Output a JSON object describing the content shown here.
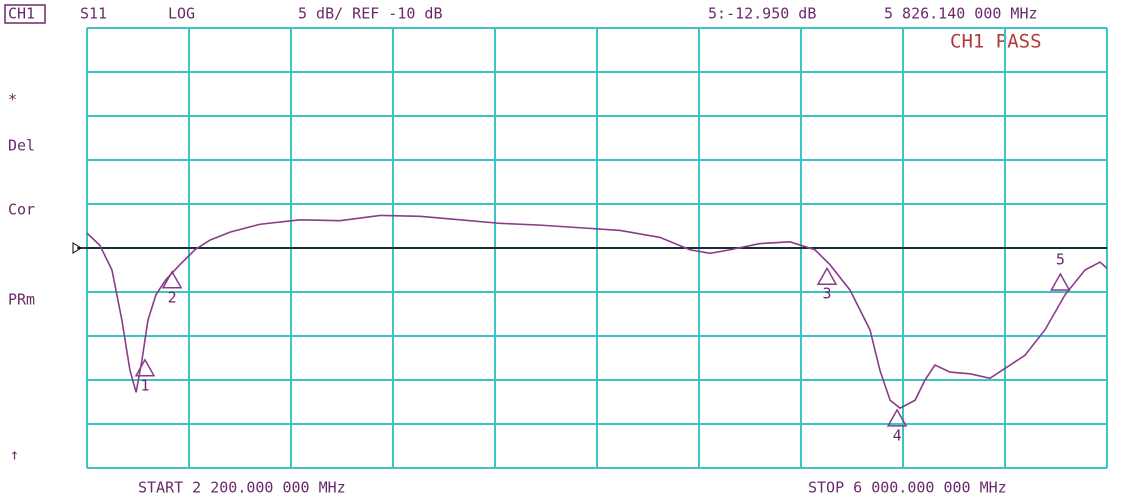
{
  "header": {
    "channel": "CH1",
    "param": "S11",
    "format": "LOG",
    "scale": "5 dB/ REF -10 dB",
    "marker_readout": "5:-12.950 dB",
    "marker_freq": "5 826.140 000 MHz",
    "status": "CH1 PASS"
  },
  "side_labels": [
    "*",
    "Del",
    "Cor",
    "PRm",
    "↑"
  ],
  "chart_data": {
    "type": "line",
    "start_label": "START 2 200.000 000 MHz",
    "stop_label": "STOP 6 000.000 000 MHz",
    "xlim": [
      2200,
      6000
    ],
    "ylim": [
      -35,
      15
    ],
    "ref": -10,
    "xticks": [
      2200,
      2580,
      2960,
      3340,
      3720,
      4100,
      4480,
      4860,
      5240,
      5620,
      6000
    ],
    "yticks": [
      -35,
      -30,
      -25,
      -20,
      -15,
      -10,
      -5,
      0,
      5,
      10,
      15
    ],
    "grid": true,
    "series": [
      {
        "color": "#8a3c8a",
        "x": [
          2200,
          2248,
          2293,
          2330,
          2360,
          2383,
          2405,
          2427,
          2457,
          2494,
          2546,
          2602,
          2658,
          2733,
          2845,
          2994,
          3143,
          3292,
          3441,
          3590,
          3739,
          3888,
          4037,
          4186,
          4335,
          4446,
          4521,
          4596,
          4707,
          4819,
          4912,
          4968,
          5043,
          5117,
          5154,
          5192,
          5229,
          5285,
          5322,
          5359,
          5415,
          5490,
          5564,
          5639,
          5694,
          5769,
          5844,
          5918,
          5974,
          6000
        ],
        "values": [
          -8.3,
          -9.7,
          -12.5,
          -18.2,
          -23.9,
          -26.4,
          -22.7,
          -18.2,
          -15.3,
          -13.6,
          -11.9,
          -10.2,
          -9.1,
          -8.2,
          -7.3,
          -6.8,
          -6.9,
          -6.3,
          -6.4,
          -6.8,
          -7.2,
          -7.4,
          -7.7,
          -8.0,
          -8.8,
          -10.2,
          -10.6,
          -10.2,
          -9.5,
          -9.3,
          -10.2,
          -11.9,
          -14.8,
          -19.3,
          -23.9,
          -27.3,
          -28.2,
          -27.3,
          -25.0,
          -23.3,
          -24.1,
          -24.3,
          -24.8,
          -23.3,
          -22.2,
          -19.3,
          -15.3,
          -12.5,
          -11.6,
          -12.3
        ]
      }
    ],
    "markers": [
      {
        "label": "1",
        "x": 2416,
        "y": -22.7
      },
      {
        "label": "2",
        "x": 2517,
        "y": -12.7
      },
      {
        "label": "3",
        "x": 4957,
        "y": -12.3
      },
      {
        "label": "4",
        "x": 5218,
        "y": -28.4
      },
      {
        "label": "5",
        "x": 5826.14,
        "y": -12.95
      }
    ]
  }
}
